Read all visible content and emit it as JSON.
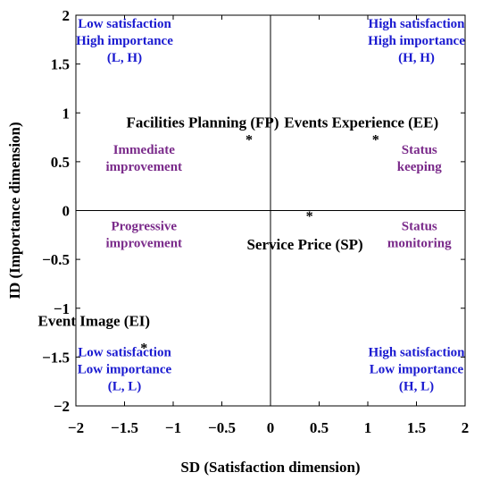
{
  "chart_data": {
    "type": "scatter",
    "xlabel": "SD (Satisfaction dimension)",
    "ylabel": "ID (Importance dimension)",
    "xlim": [
      -2,
      2
    ],
    "ylim": [
      -2,
      2
    ],
    "xticks": [
      "−2",
      "−1.5",
      "−1",
      "−0.5",
      "0",
      "0.5",
      "1",
      "1.5",
      "2"
    ],
    "yticks": [
      "−2",
      "−1.5",
      "−1",
      "−0.5",
      "0",
      "0.5",
      "1",
      "1.5",
      "2"
    ],
    "grid": false,
    "points": [
      {
        "label": "Facilities Planning (FP)",
        "x": -0.22,
        "y": 0.73
      },
      {
        "label": "Events Experience (EE)",
        "x": 1.08,
        "y": 0.73
      },
      {
        "label": "Service Price (SP)",
        "x": 0.4,
        "y": -0.05
      },
      {
        "label": "Event Image (EI)",
        "x": -1.3,
        "y": -1.4
      }
    ],
    "quadrant_labels": {
      "top_left": [
        "Low satisfaction",
        "High importance",
        "(L, H)"
      ],
      "top_right": [
        "High satisfaction",
        "High importance",
        "(H, H)"
      ],
      "bottom_left": [
        "Low satisfaction",
        "Low importance",
        "(L, L)"
      ],
      "bottom_right": [
        "High satisfaction",
        "Low importance",
        "(H, L)"
      ]
    },
    "strategy_labels": {
      "top_left": [
        "Immediate",
        "improvement"
      ],
      "top_right": [
        "Status",
        "keeping"
      ],
      "bottom_left": [
        "Progressive",
        "improvement"
      ],
      "bottom_right": [
        "Status",
        "monitoring"
      ]
    },
    "colors": {
      "quadrant_text": "#1a1ad0",
      "strategy_text": "#7a2a8a",
      "marker": "#000000"
    }
  }
}
